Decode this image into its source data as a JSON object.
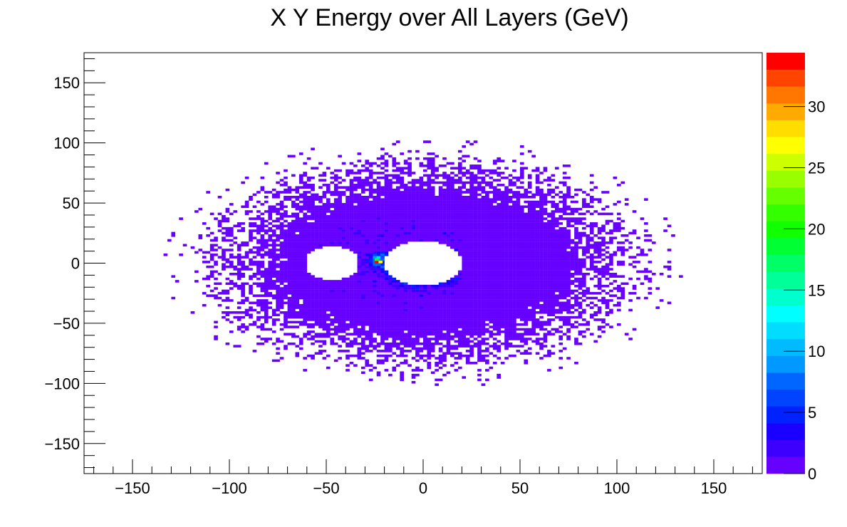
{
  "chart_data": {
    "type": "heatmap",
    "title": "X Y Energy over All Layers (GeV)",
    "xlabel": "",
    "ylabel": "",
    "xlim": [
      -175,
      175
    ],
    "ylim": [
      -175,
      175
    ],
    "x_ticks": [
      {
        "value": -150,
        "label": "−150"
      },
      {
        "value": -100,
        "label": "−100"
      },
      {
        "value": -50,
        "label": "−50"
      },
      {
        "value": 0,
        "label": "0"
      },
      {
        "value": 50,
        "label": "50"
      },
      {
        "value": 100,
        "label": "100"
      },
      {
        "value": 150,
        "label": "150"
      }
    ],
    "y_ticks": [
      {
        "value": 150,
        "label": "150"
      },
      {
        "value": 100,
        "label": "100"
      },
      {
        "value": 50,
        "label": "50"
      },
      {
        "value": 0,
        "label": "0"
      },
      {
        "value": -50,
        "label": "−50"
      },
      {
        "value": -100,
        "label": "−100"
      },
      {
        "value": -150,
        "label": "−150"
      }
    ],
    "colorbar": {
      "min": 0,
      "max": 34.4,
      "ticks": [
        {
          "value": 0,
          "label": "0"
        },
        {
          "value": 5,
          "label": "5"
        },
        {
          "value": 10,
          "label": "10"
        },
        {
          "value": 15,
          "label": "15"
        },
        {
          "value": 20,
          "label": "20"
        },
        {
          "value": 25,
          "label": "25"
        },
        {
          "value": 30,
          "label": "30"
        }
      ],
      "colors": [
        "#6600ff",
        "#3d00ff",
        "#1a00ff",
        "#0022ff",
        "#0044ff",
        "#0066ff",
        "#0099ff",
        "#00bbff",
        "#00ddff",
        "#00ffff",
        "#00ffcc",
        "#00ff99",
        "#00ff66",
        "#00ff33",
        "#11ff00",
        "#33ff00",
        "#66ff00",
        "#99ff00",
        "#ccff00",
        "#ffff00",
        "#ffdd00",
        "#ffaa00",
        "#ff7700",
        "#ff4400",
        "#ff0000"
      ]
    },
    "distribution": {
      "center": [
        0,
        0
      ],
      "core_radius_x": 70,
      "core_radius_y": 55,
      "halo_radius_x": 135,
      "halo_radius_y": 105,
      "holes": [
        {
          "cx": -47,
          "cy": 0,
          "rx": 14,
          "ry": 14
        },
        {
          "cx": 0,
          "cy": 0,
          "rx": 20,
          "ry": 19
        }
      ],
      "hotspot": {
        "x": -24,
        "y": 1,
        "value": 34
      }
    }
  }
}
